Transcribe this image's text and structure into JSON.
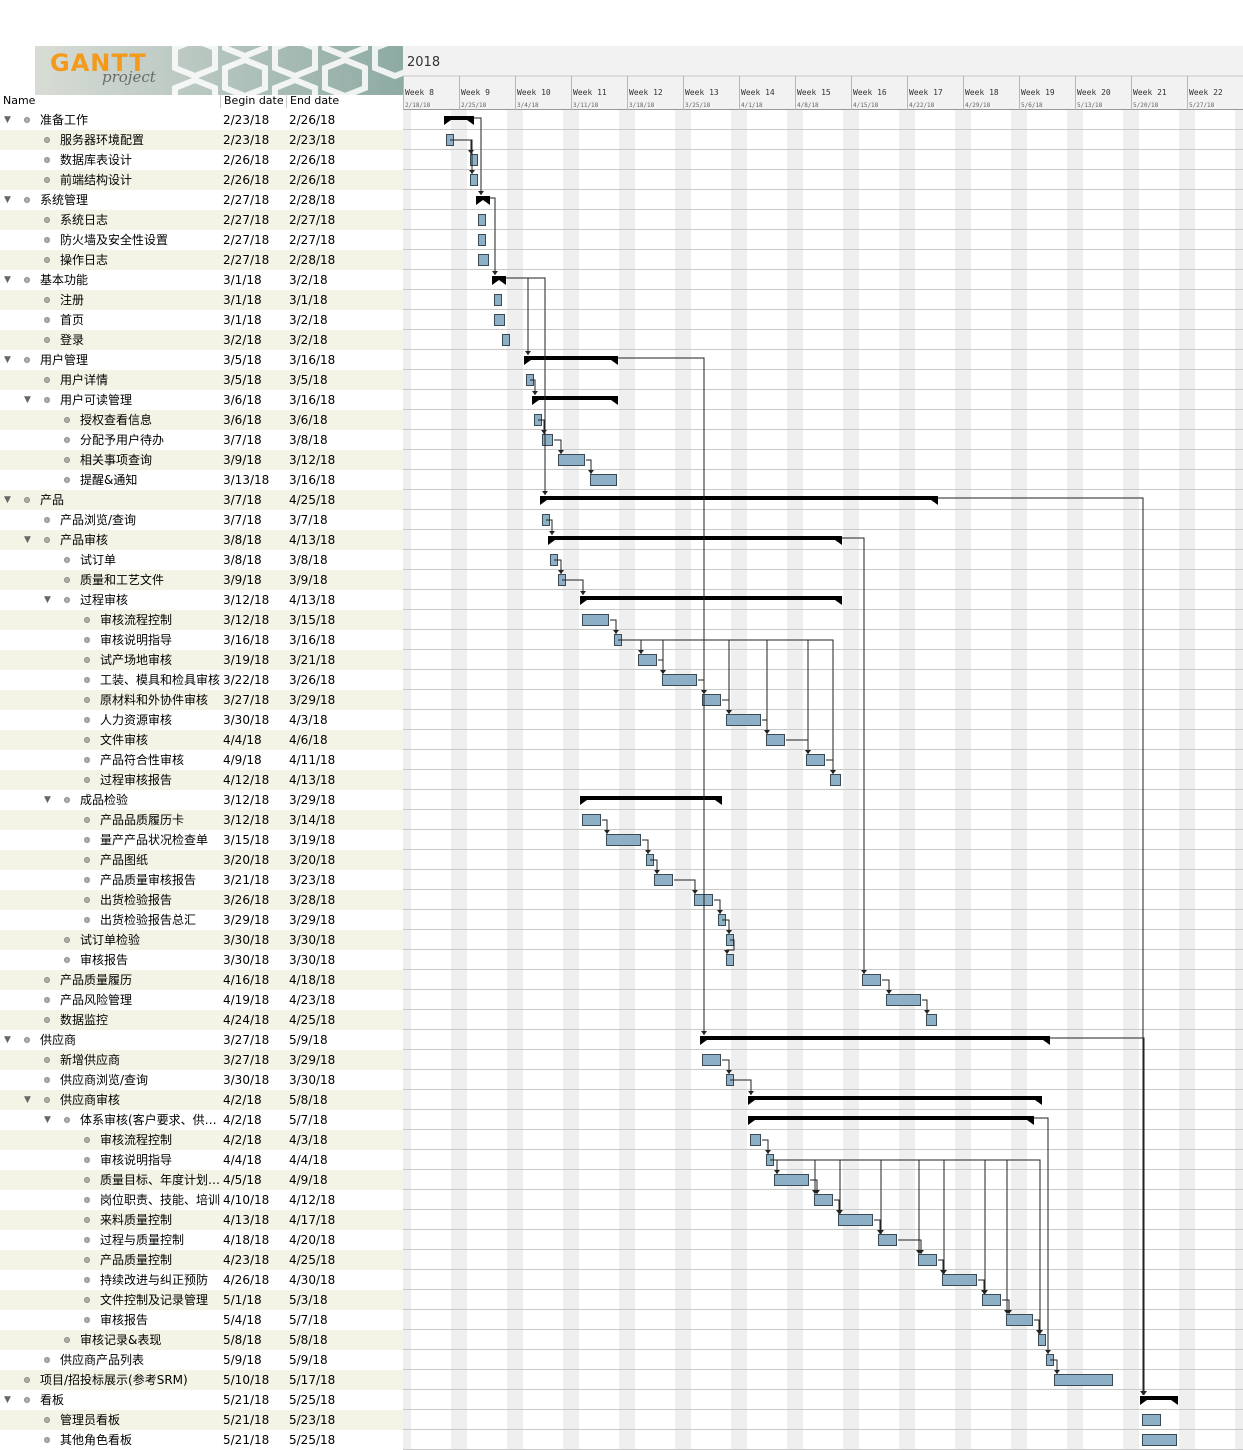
{
  "logo": {
    "title": "GANTT",
    "subtitle": "project"
  },
  "table_header": {
    "name": "Name",
    "begin": "Begin date",
    "end": "End date"
  },
  "timeline": {
    "year": "2018",
    "weeks": [
      {
        "label": "Week 8",
        "date": "2/18/18"
      },
      {
        "label": "Week 9",
        "date": "2/25/18"
      },
      {
        "label": "Week 10",
        "date": "3/4/18"
      },
      {
        "label": "Week 11",
        "date": "3/11/18"
      },
      {
        "label": "Week 12",
        "date": "3/18/18"
      },
      {
        "label": "Week 13",
        "date": "3/25/18"
      },
      {
        "label": "Week 14",
        "date": "4/1/18"
      },
      {
        "label": "Week 15",
        "date": "4/8/18"
      },
      {
        "label": "Week 16",
        "date": "4/15/18"
      },
      {
        "label": "Week 17",
        "date": "4/22/18"
      },
      {
        "label": "Week 18",
        "date": "4/29/18"
      },
      {
        "label": "Week 19",
        "date": "5/6/18"
      },
      {
        "label": "Week 20",
        "date": "5/13/18"
      },
      {
        "label": "Week 21",
        "date": "5/20/18"
      },
      {
        "label": "Week 22",
        "date": "5/27/18"
      }
    ],
    "start": "2018-02-18"
  },
  "colors": {
    "bar_fill": "#8db0c7",
    "bar_stroke": "#3a4a55",
    "summary": "#000000",
    "row_alt": "#f3f3e6",
    "weekend": "#efefef"
  },
  "tasks": [
    {
      "name": "准备工作",
      "begin": "2/23/18",
      "end": "2/26/18",
      "level": 0,
      "group": true
    },
    {
      "name": "服务器环境配置",
      "begin": "2/23/18",
      "end": "2/23/18",
      "level": 1,
      "group": false
    },
    {
      "name": "数据库表设计",
      "begin": "2/26/18",
      "end": "2/26/18",
      "level": 1,
      "group": false
    },
    {
      "name": "前端结构设计",
      "begin": "2/26/18",
      "end": "2/26/18",
      "level": 1,
      "group": false
    },
    {
      "name": "系统管理",
      "begin": "2/27/18",
      "end": "2/28/18",
      "level": 0,
      "group": true
    },
    {
      "name": "系统日志",
      "begin": "2/27/18",
      "end": "2/27/18",
      "level": 1,
      "group": false
    },
    {
      "name": "防火墙及安全性设置",
      "begin": "2/27/18",
      "end": "2/27/18",
      "level": 1,
      "group": false
    },
    {
      "name": "操作日志",
      "begin": "2/27/18",
      "end": "2/28/18",
      "level": 1,
      "group": false
    },
    {
      "name": "基本功能",
      "begin": "3/1/18",
      "end": "3/2/18",
      "level": 0,
      "group": true
    },
    {
      "name": "注册",
      "begin": "3/1/18",
      "end": "3/1/18",
      "level": 1,
      "group": false
    },
    {
      "name": "首页",
      "begin": "3/1/18",
      "end": "3/2/18",
      "level": 1,
      "group": false
    },
    {
      "name": "登录",
      "begin": "3/2/18",
      "end": "3/2/18",
      "level": 1,
      "group": false
    },
    {
      "name": "用户管理",
      "begin": "3/5/18",
      "end": "3/16/18",
      "level": 0,
      "group": true
    },
    {
      "name": "用户详情",
      "begin": "3/5/18",
      "end": "3/5/18",
      "level": 1,
      "group": false
    },
    {
      "name": "用户可读管理",
      "begin": "3/6/18",
      "end": "3/16/18",
      "level": 1,
      "group": true
    },
    {
      "name": "授权查看信息",
      "begin": "3/6/18",
      "end": "3/6/18",
      "level": 2,
      "group": false
    },
    {
      "name": "分配予用户待办",
      "begin": "3/7/18",
      "end": "3/8/18",
      "level": 2,
      "group": false
    },
    {
      "name": "相关事项查询",
      "begin": "3/9/18",
      "end": "3/12/18",
      "level": 2,
      "group": false
    },
    {
      "name": "提醒&通知",
      "begin": "3/13/18",
      "end": "3/16/18",
      "level": 2,
      "group": false
    },
    {
      "name": "产品",
      "begin": "3/7/18",
      "end": "4/25/18",
      "level": 0,
      "group": true
    },
    {
      "name": "产品浏览/查询",
      "begin": "3/7/18",
      "end": "3/7/18",
      "level": 1,
      "group": false
    },
    {
      "name": "产品审核",
      "begin": "3/8/18",
      "end": "4/13/18",
      "level": 1,
      "group": true
    },
    {
      "name": "试订单",
      "begin": "3/8/18",
      "end": "3/8/18",
      "level": 2,
      "group": false
    },
    {
      "name": "质量和工艺文件",
      "begin": "3/9/18",
      "end": "3/9/18",
      "level": 2,
      "group": false
    },
    {
      "name": "过程审核",
      "begin": "3/12/18",
      "end": "4/13/18",
      "level": 2,
      "group": true
    },
    {
      "name": "审核流程控制",
      "begin": "3/12/18",
      "end": "3/15/18",
      "level": 3,
      "group": false
    },
    {
      "name": "审核说明指导",
      "begin": "3/16/18",
      "end": "3/16/18",
      "level": 3,
      "group": false
    },
    {
      "name": "试产场地审核",
      "begin": "3/19/18",
      "end": "3/21/18",
      "level": 3,
      "group": false
    },
    {
      "name": "工装、模具和检具审核",
      "begin": "3/22/18",
      "end": "3/26/18",
      "level": 3,
      "group": false
    },
    {
      "name": "原材料和外协件审核",
      "begin": "3/27/18",
      "end": "3/29/18",
      "level": 3,
      "group": false
    },
    {
      "name": "人力资源审核",
      "begin": "3/30/18",
      "end": "4/3/18",
      "level": 3,
      "group": false
    },
    {
      "name": "文件审核",
      "begin": "4/4/18",
      "end": "4/6/18",
      "level": 3,
      "group": false
    },
    {
      "name": "产品符合性审核",
      "begin": "4/9/18",
      "end": "4/11/18",
      "level": 3,
      "group": false
    },
    {
      "name": "过程审核报告",
      "begin": "4/12/18",
      "end": "4/13/18",
      "level": 3,
      "group": false
    },
    {
      "name": "成品检验",
      "begin": "3/12/18",
      "end": "3/29/18",
      "level": 2,
      "group": true
    },
    {
      "name": "产品品质履历卡",
      "begin": "3/12/18",
      "end": "3/14/18",
      "level": 3,
      "group": false
    },
    {
      "name": "量产产品状况检查单",
      "begin": "3/15/18",
      "end": "3/19/18",
      "level": 3,
      "group": false
    },
    {
      "name": "产品图纸",
      "begin": "3/20/18",
      "end": "3/20/18",
      "level": 3,
      "group": false
    },
    {
      "name": "产品质量审核报告",
      "begin": "3/21/18",
      "end": "3/23/18",
      "level": 3,
      "group": false
    },
    {
      "name": "出货检验报告",
      "begin": "3/26/18",
      "end": "3/28/18",
      "level": 3,
      "group": false
    },
    {
      "name": "出货检验报告总汇",
      "begin": "3/29/18",
      "end": "3/29/18",
      "level": 3,
      "group": false
    },
    {
      "name": "试订单检验",
      "begin": "3/30/18",
      "end": "3/30/18",
      "level": 2,
      "group": false
    },
    {
      "name": "审核报告",
      "begin": "3/30/18",
      "end": "3/30/18",
      "level": 2,
      "group": false
    },
    {
      "name": "产品质量履历",
      "begin": "4/16/18",
      "end": "4/18/18",
      "level": 1,
      "group": false
    },
    {
      "name": "产品风险管理",
      "begin": "4/19/18",
      "end": "4/23/18",
      "level": 1,
      "group": false
    },
    {
      "name": "数据监控",
      "begin": "4/24/18",
      "end": "4/25/18",
      "level": 1,
      "group": false
    },
    {
      "name": "供应商",
      "begin": "3/27/18",
      "end": "5/9/18",
      "level": 0,
      "group": true
    },
    {
      "name": "新增供应商",
      "begin": "3/27/18",
      "end": "3/29/18",
      "level": 1,
      "group": false
    },
    {
      "name": "供应商浏览/查询",
      "begin": "3/30/18",
      "end": "3/30/18",
      "level": 1,
      "group": false
    },
    {
      "name": "供应商审核",
      "begin": "4/2/18",
      "end": "5/8/18",
      "level": 1,
      "group": true
    },
    {
      "name": "体系审核(客户要求、供…",
      "begin": "4/2/18",
      "end": "5/7/18",
      "level": 2,
      "group": true
    },
    {
      "name": "审核流程控制",
      "begin": "4/2/18",
      "end": "4/3/18",
      "level": 3,
      "group": false
    },
    {
      "name": "审核说明指导",
      "begin": "4/4/18",
      "end": "4/4/18",
      "level": 3,
      "group": false
    },
    {
      "name": "质量目标、年度计划…",
      "begin": "4/5/18",
      "end": "4/9/18",
      "level": 3,
      "group": false
    },
    {
      "name": "岗位职责、技能、培训",
      "begin": "4/10/18",
      "end": "4/12/18",
      "level": 3,
      "group": false
    },
    {
      "name": "来料质量控制",
      "begin": "4/13/18",
      "end": "4/17/18",
      "level": 3,
      "group": false
    },
    {
      "name": "过程与质量控制",
      "begin": "4/18/18",
      "end": "4/20/18",
      "level": 3,
      "group": false
    },
    {
      "name": "产品质量控制",
      "begin": "4/23/18",
      "end": "4/25/18",
      "level": 3,
      "group": false
    },
    {
      "name": "持续改进与纠正预防",
      "begin": "4/26/18",
      "end": "4/30/18",
      "level": 3,
      "group": false
    },
    {
      "name": "文件控制及记录管理",
      "begin": "5/1/18",
      "end": "5/3/18",
      "level": 3,
      "group": false
    },
    {
      "name": "审核报告",
      "begin": "5/4/18",
      "end": "5/7/18",
      "level": 3,
      "group": false
    },
    {
      "name": "审核记录&表现",
      "begin": "5/8/18",
      "end": "5/8/18",
      "level": 2,
      "group": false
    },
    {
      "name": "供应商产品列表",
      "begin": "5/9/18",
      "end": "5/9/18",
      "level": 1,
      "group": false
    },
    {
      "name": "项目/招投标展示(参考SRM)",
      "begin": "5/10/18",
      "end": "5/17/18",
      "level": 0,
      "group": false
    },
    {
      "name": "看板",
      "begin": "5/21/18",
      "end": "5/25/18",
      "level": 0,
      "group": true
    },
    {
      "name": "管理员看板",
      "begin": "5/21/18",
      "end": "5/23/18",
      "level": 1,
      "group": false
    },
    {
      "name": "其他角色看板",
      "begin": "5/21/18",
      "end": "5/25/18",
      "level": 1,
      "group": false
    }
  ],
  "dependencies": [
    [
      1,
      2
    ],
    [
      1,
      3
    ],
    [
      0,
      4
    ],
    [
      4,
      8
    ],
    [
      8,
      12
    ],
    [
      8,
      19
    ],
    [
      13,
      14
    ],
    [
      15,
      16
    ],
    [
      16,
      17
    ],
    [
      17,
      18
    ],
    [
      20,
      21
    ],
    [
      22,
      23
    ],
    [
      23,
      24
    ],
    [
      25,
      26
    ],
    [
      26,
      27
    ],
    [
      26,
      28
    ],
    [
      26,
      29
    ],
    [
      26,
      30
    ],
    [
      26,
      31
    ],
    [
      26,
      32
    ],
    [
      26,
      33
    ],
    [
      27,
      28
    ],
    [
      28,
      29
    ],
    [
      29,
      30
    ],
    [
      30,
      31
    ],
    [
      31,
      32
    ],
    [
      32,
      33
    ],
    [
      35,
      36
    ],
    [
      36,
      37
    ],
    [
      37,
      38
    ],
    [
      38,
      39
    ],
    [
      39,
      40
    ],
    [
      40,
      41
    ],
    [
      41,
      42
    ],
    [
      21,
      43
    ],
    [
      43,
      44
    ],
    [
      44,
      45
    ],
    [
      12,
      46
    ],
    [
      47,
      48
    ],
    [
      48,
      49
    ],
    [
      51,
      52
    ],
    [
      52,
      53
    ],
    [
      52,
      54
    ],
    [
      52,
      55
    ],
    [
      52,
      56
    ],
    [
      52,
      57
    ],
    [
      52,
      58
    ],
    [
      52,
      59
    ],
    [
      52,
      60
    ],
    [
      52,
      61
    ],
    [
      53,
      54
    ],
    [
      54,
      55
    ],
    [
      55,
      56
    ],
    [
      56,
      57
    ],
    [
      57,
      58
    ],
    [
      58,
      59
    ],
    [
      59,
      60
    ],
    [
      60,
      61
    ],
    [
      50,
      62
    ],
    [
      62,
      63
    ],
    [
      19,
      64
    ],
    [
      46,
      64
    ]
  ]
}
